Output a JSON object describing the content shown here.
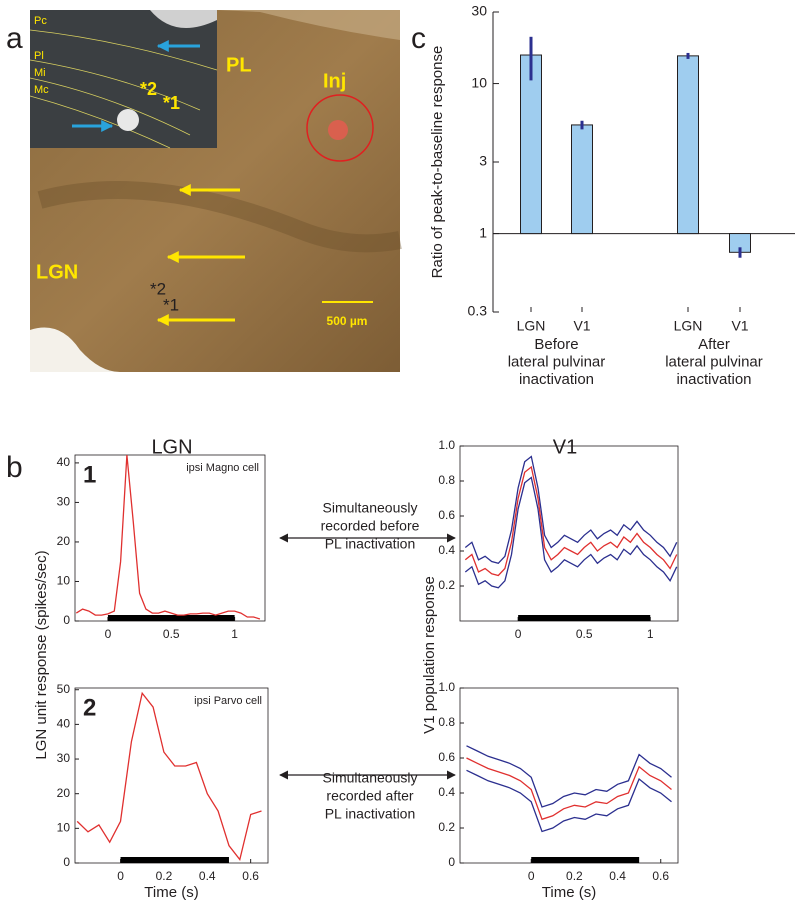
{
  "panel_letters": [
    "a",
    "c",
    "b"
  ],
  "image_labels": {
    "inset": [
      "Pc",
      "Pl",
      "Mi",
      "Mc"
    ],
    "inset_sites": [
      "*2",
      "*1"
    ],
    "main": [
      "PL",
      "Inj",
      "LGN"
    ],
    "main_sites": [
      "*2",
      "*1"
    ],
    "scale_bar": "500 µm"
  },
  "column_titles": [
    "LGN",
    "V1"
  ],
  "shared_labels": {
    "lgn_ylabel": "LGN unit response (spikes/sec)",
    "v1_ylabel": "V1 population response"
  },
  "annotations": [
    [
      "Simultaneously",
      "recorded before",
      "PL inactivation"
    ],
    [
      "Simultaneously",
      "recorded after",
      "PL inactivation"
    ]
  ],
  "chart_data": [
    {
      "type": "bar",
      "ylabel": "Ratio of peak-to-baseline response",
      "categories": [
        "LGN",
        "V1",
        "LGN",
        "V1"
      ],
      "group_labels": [
        [
          "Before",
          "lateral pulvinar",
          "inactivation"
        ],
        [
          "After",
          "lateral pulvinar",
          "inactivation"
        ]
      ],
      "values": [
        15.5,
        5.3,
        15.3,
        0.75
      ],
      "errors": [
        5,
        0.35,
        0.7,
        0.06
      ],
      "baseline": 1,
      "color": "#9fcdef",
      "error_color": "#2b2f8f",
      "log_scale": true,
      "ylim": [
        0.3,
        30
      ],
      "yticks": [
        0.3,
        1,
        3,
        10,
        30
      ]
    },
    {
      "type": "line",
      "panel_number": "1",
      "annotation": "ipsi Magno cell",
      "x": [
        -0.25,
        -0.2,
        -0.15,
        -0.1,
        -0.05,
        0,
        0.05,
        0.1,
        0.15,
        0.2,
        0.25,
        0.3,
        0.35,
        0.4,
        0.45,
        0.5,
        0.55,
        0.6,
        0.65,
        0.7,
        0.75,
        0.8,
        0.85,
        0.9,
        0.95,
        1.0,
        1.05,
        1.1,
        1.15,
        1.2
      ],
      "series": [
        {
          "color": "#e0302f",
          "values": [
            2,
            3,
            2.5,
            1.5,
            1.5,
            1.8,
            2.5,
            15,
            42,
            25,
            7,
            3,
            2,
            2,
            2.5,
            2,
            1.5,
            1.5,
            1.8,
            1.8,
            2,
            2,
            1.5,
            2,
            2.5,
            2.5,
            2,
            1,
            1,
            0.5
          ]
        }
      ],
      "stimulus": [
        0,
        1
      ],
      "xlim": [
        -0.26,
        1.24
      ],
      "xticks": [
        0,
        0.5,
        1
      ],
      "ylim": [
        0,
        42
      ],
      "yticks": [
        0,
        10,
        20,
        30,
        40
      ]
    },
    {
      "type": "line",
      "x": [
        -0.4,
        -0.35,
        -0.3,
        -0.25,
        -0.2,
        -0.15,
        -0.1,
        -0.05,
        0,
        0.05,
        0.1,
        0.15,
        0.2,
        0.25,
        0.3,
        0.35,
        0.4,
        0.45,
        0.5,
        0.55,
        0.6,
        0.65,
        0.7,
        0.75,
        0.8,
        0.85,
        0.9,
        0.95,
        1.0,
        1.05,
        1.1,
        1.15,
        1.2
      ],
      "series": [
        {
          "color": "#2b2f8f",
          "values": [
            0.42,
            0.45,
            0.35,
            0.37,
            0.34,
            0.33,
            0.37,
            0.52,
            0.76,
            0.91,
            0.94,
            0.76,
            0.49,
            0.42,
            0.45,
            0.49,
            0.47,
            0.45,
            0.49,
            0.52,
            0.47,
            0.5,
            0.52,
            0.49,
            0.55,
            0.52,
            0.57,
            0.52,
            0.49,
            0.45,
            0.42,
            0.37,
            0.45
          ]
        },
        {
          "color": "#2b2f8f",
          "values": [
            0.28,
            0.31,
            0.21,
            0.23,
            0.2,
            0.19,
            0.23,
            0.38,
            0.64,
            0.79,
            0.82,
            0.64,
            0.35,
            0.28,
            0.31,
            0.35,
            0.33,
            0.31,
            0.35,
            0.38,
            0.33,
            0.36,
            0.38,
            0.35,
            0.41,
            0.38,
            0.43,
            0.38,
            0.35,
            0.31,
            0.28,
            0.23,
            0.31
          ]
        },
        {
          "color": "#e0302f",
          "values": [
            0.35,
            0.38,
            0.28,
            0.3,
            0.27,
            0.26,
            0.3,
            0.45,
            0.7,
            0.85,
            0.88,
            0.7,
            0.42,
            0.35,
            0.38,
            0.42,
            0.4,
            0.38,
            0.42,
            0.45,
            0.4,
            0.43,
            0.45,
            0.42,
            0.48,
            0.45,
            0.5,
            0.45,
            0.42,
            0.38,
            0.35,
            0.3,
            0.38
          ]
        }
      ],
      "stimulus": [
        0,
        1
      ],
      "xlim": [
        -0.44,
        1.21
      ],
      "xticks": [
        0,
        0.5,
        1
      ],
      "ylim": [
        0,
        1
      ],
      "yticks": [
        0.2,
        0.4,
        0.6,
        0.8,
        {
          "value": 1,
          "label": "1.0"
        }
      ]
    },
    {
      "type": "line",
      "panel_number": "2",
      "annotation": "ipsi Parvo cell",
      "xlabel": "Time (s)",
      "x": [
        -0.2,
        -0.15,
        -0.1,
        -0.05,
        0,
        0.05,
        0.1,
        0.15,
        0.2,
        0.25,
        0.3,
        0.35,
        0.4,
        0.45,
        0.5,
        0.55,
        0.6,
        0.65
      ],
      "series": [
        {
          "color": "#e0302f",
          "values": [
            12,
            9,
            11,
            6,
            12,
            35,
            49,
            45,
            32,
            28,
            28,
            29,
            20,
            15,
            5,
            1,
            14,
            15
          ]
        }
      ],
      "stimulus": [
        0,
        0.5
      ],
      "xlim": [
        -0.21,
        0.68
      ],
      "xticks": [
        0,
        0.2,
        0.4,
        0.6
      ],
      "ylim": [
        0,
        50.5
      ],
      "yticks": [
        0,
        10,
        20,
        30,
        40,
        50
      ]
    },
    {
      "type": "line",
      "xlabel": "Time (s)",
      "x": [
        -0.3,
        -0.25,
        -0.2,
        -0.15,
        -0.1,
        -0.05,
        0,
        0.05,
        0.1,
        0.15,
        0.2,
        0.25,
        0.3,
        0.35,
        0.4,
        0.45,
        0.5,
        0.55,
        0.6,
        0.65
      ],
      "series": [
        {
          "color": "#2b2f8f",
          "values": [
            0.67,
            0.64,
            0.61,
            0.59,
            0.57,
            0.54,
            0.49,
            0.32,
            0.34,
            0.38,
            0.4,
            0.39,
            0.42,
            0.41,
            0.45,
            0.47,
            0.62,
            0.57,
            0.54,
            0.49
          ]
        },
        {
          "color": "#2b2f8f",
          "values": [
            0.53,
            0.5,
            0.47,
            0.45,
            0.43,
            0.4,
            0.35,
            0.18,
            0.2,
            0.24,
            0.26,
            0.25,
            0.28,
            0.27,
            0.31,
            0.33,
            0.48,
            0.43,
            0.4,
            0.35
          ]
        },
        {
          "color": "#e0302f",
          "values": [
            0.6,
            0.57,
            0.54,
            0.52,
            0.5,
            0.47,
            0.42,
            0.25,
            0.27,
            0.31,
            0.33,
            0.32,
            0.35,
            0.34,
            0.38,
            0.4,
            0.55,
            0.5,
            0.47,
            0.42
          ]
        }
      ],
      "stimulus": [
        0,
        0.5
      ],
      "xlim": [
        -0.33,
        0.68
      ],
      "xticks": [
        0,
        0.2,
        0.4,
        0.6
      ],
      "ylim": [
        0,
        1
      ],
      "yticks": [
        0,
        0.2,
        0.4,
        0.6,
        0.8,
        {
          "value": 1,
          "label": "1.0"
        }
      ]
    }
  ]
}
